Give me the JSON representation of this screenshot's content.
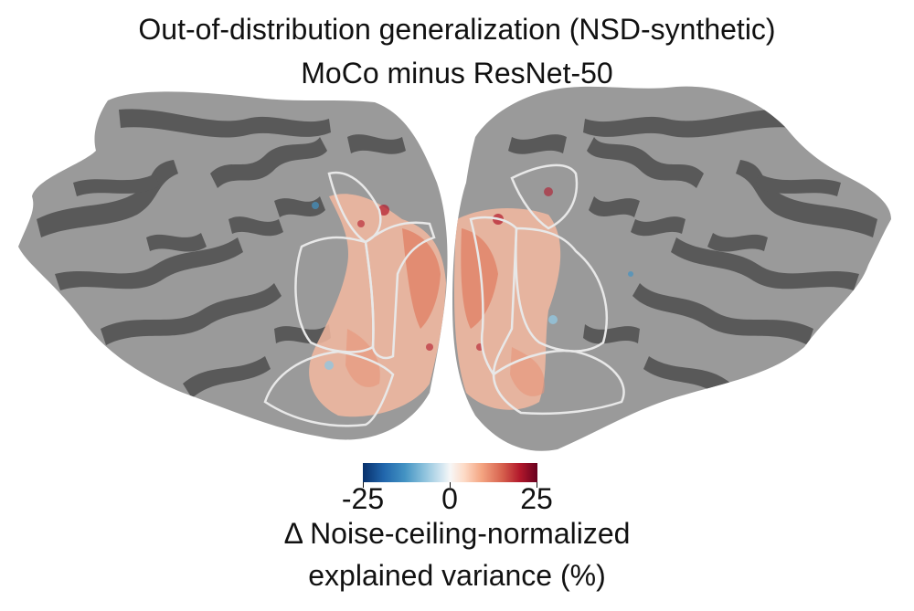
{
  "figure": {
    "title": "Out-of-distribution generalization (NSD-synthetic)",
    "subtitle": "MoCo minus ResNet-50"
  },
  "colorbar": {
    "colormap": "RdBu_r",
    "ticks": [
      "-25",
      "0",
      "25"
    ],
    "range": [
      -25,
      25
    ],
    "label_line1": "Δ Noise-ceiling-normalized",
    "label_line2": "explained variance (%)",
    "colors": {
      "negative": "#2166ac",
      "zero": "#f7f7f7",
      "positive": "#b2182b"
    }
  },
  "flatmap": {
    "hemispheres": [
      "left",
      "right"
    ],
    "curvature_colors": {
      "gyri": "#9a9a9a",
      "sulci": "#5a5a5a"
    },
    "roi_outline_color": "#e8e8e8"
  }
}
